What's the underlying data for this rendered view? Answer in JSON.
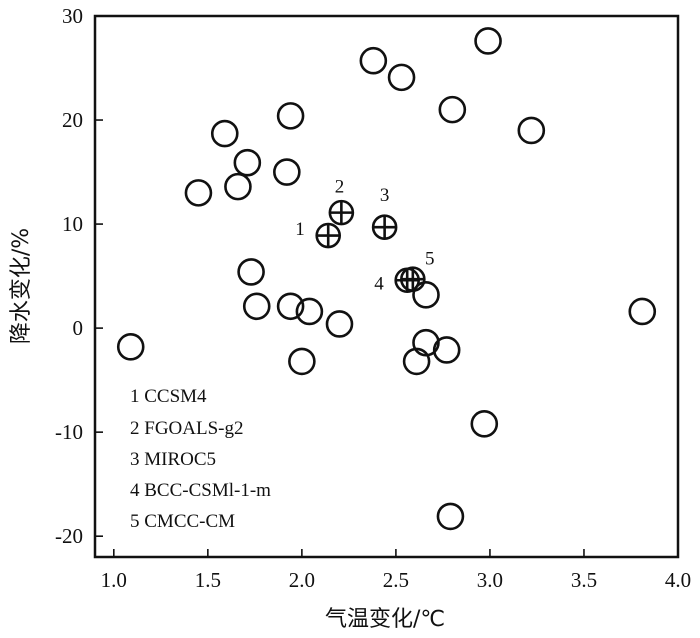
{
  "chart_data": {
    "type": "scatter",
    "xlabel": "气温变化/℃",
    "ylabel": "降水变化/%",
    "xlim": [
      0.9,
      4.0
    ],
    "ylim": [
      -22,
      30
    ],
    "xticks": [
      "1.0",
      "1.5",
      "2.0",
      "2.5",
      "3.0",
      "3.5",
      "4.0"
    ],
    "xtick_values": [
      1.0,
      1.5,
      2.0,
      2.5,
      3.0,
      3.5,
      4.0
    ],
    "yticks": [
      "30",
      "20",
      "10",
      "0",
      "-10",
      "-20"
    ],
    "ytick_values": [
      30,
      20,
      10,
      0,
      -10,
      -20
    ],
    "grid": false,
    "legend": [
      "1 CCSM4",
      "2 FGOALS-g2",
      "3 MIROC5",
      "4 BCC-CSMl-1-m",
      "5 CMCC-CM"
    ],
    "series": [
      {
        "marker": "circle",
        "points": [
          {
            "x": 2.99,
            "y": 27.6
          },
          {
            "x": 2.38,
            "y": 25.7
          },
          {
            "x": 2.53,
            "y": 24.1
          },
          {
            "x": 2.8,
            "y": 21.0
          },
          {
            "x": 3.22,
            "y": 19.0
          },
          {
            "x": 1.94,
            "y": 20.4
          },
          {
            "x": 1.59,
            "y": 18.7
          },
          {
            "x": 1.71,
            "y": 15.9
          },
          {
            "x": 1.92,
            "y": 15.0
          },
          {
            "x": 1.45,
            "y": 13.0
          },
          {
            "x": 1.66,
            "y": 13.6
          },
          {
            "x": 1.73,
            "y": 5.4
          },
          {
            "x": 1.76,
            "y": 2.1
          },
          {
            "x": 1.94,
            "y": 2.1
          },
          {
            "x": 2.04,
            "y": 1.6
          },
          {
            "x": 2.2,
            "y": 0.4
          },
          {
            "x": 1.09,
            "y": -1.8
          },
          {
            "x": 2.0,
            "y": -3.2
          },
          {
            "x": 2.66,
            "y": 3.2
          },
          {
            "x": 2.66,
            "y": -1.4
          },
          {
            "x": 2.77,
            "y": -2.1
          },
          {
            "x": 2.61,
            "y": -3.2
          },
          {
            "x": 3.81,
            "y": 1.6
          },
          {
            "x": 2.97,
            "y": -9.2
          },
          {
            "x": 2.79,
            "y": -18.1
          }
        ]
      },
      {
        "marker": "circle-cross",
        "points": [
          {
            "id": "1",
            "x": 2.14,
            "y": 8.9
          },
          {
            "id": "2",
            "x": 2.21,
            "y": 11.1
          },
          {
            "id": "3",
            "x": 2.44,
            "y": 9.7
          },
          {
            "id": "4",
            "x": 2.56,
            "y": 4.6
          },
          {
            "id": "5",
            "x": 2.59,
            "y": 4.7
          }
        ]
      }
    ],
    "annotations": [
      {
        "text": "1",
        "x": 1.99,
        "y": 9.6
      },
      {
        "text": "2",
        "x": 2.2,
        "y": 13.7
      },
      {
        "text": "3",
        "x": 2.44,
        "y": 12.9
      },
      {
        "text": "4",
        "x": 2.41,
        "y": 4.4
      },
      {
        "text": "5",
        "x": 2.68,
        "y": 6.8
      }
    ]
  }
}
